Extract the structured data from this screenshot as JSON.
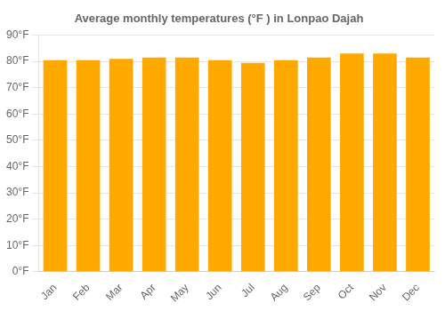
{
  "chart_data": {
    "type": "bar",
    "title": "Average monthly temperatures (°F ) in Lonpao Dajah",
    "categories": [
      "Jan",
      "Feb",
      "Mar",
      "Apr",
      "May",
      "Jun",
      "Jul",
      "Aug",
      "Sep",
      "Oct",
      "Nov",
      "Dec"
    ],
    "values": [
      80.5,
      80.5,
      81.0,
      81.5,
      81.5,
      80.5,
      79.5,
      80.5,
      81.5,
      83.0,
      83.0,
      81.5
    ],
    "color": "#FFA800",
    "ylim": [
      0,
      90
    ],
    "yticks": [
      {
        "value": 0,
        "label": "0°F"
      },
      {
        "value": 10,
        "label": "10°F"
      },
      {
        "value": 20,
        "label": "20°F"
      },
      {
        "value": 30,
        "label": "30°F"
      },
      {
        "value": 40,
        "label": "40°F"
      },
      {
        "value": 50,
        "label": "50°F"
      },
      {
        "value": 60,
        "label": "60°F"
      },
      {
        "value": 70,
        "label": "70°F"
      },
      {
        "value": 80,
        "label": "80°F"
      },
      {
        "value": 90,
        "label": "90°F"
      }
    ],
    "grid": true
  }
}
